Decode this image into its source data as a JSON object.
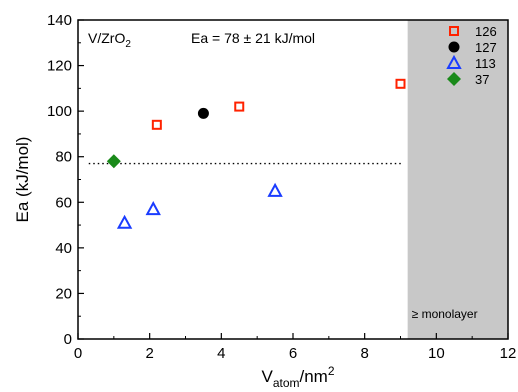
{
  "chart_data": {
    "type": "scatter",
    "xlabel_main": "V",
    "xlabel_sub": "atom",
    "xlabel_unit": "/nm",
    "xlabel_sup": "2",
    "ylabel": "Ea (kJ/mol)",
    "xlim": [
      0,
      12
    ],
    "ylim": [
      0,
      140
    ],
    "x_ticks": [
      0,
      2,
      4,
      6,
      8,
      10,
      12
    ],
    "y_ticks": [
      0,
      20,
      40,
      60,
      80,
      100,
      120,
      140
    ],
    "grid": false,
    "legend_position": "top-right",
    "annotation_system_main": "V/ZrO",
    "annotation_system_sub": "2",
    "annotation_ea": "Ea = 78 ± 21 kJ/mol",
    "reference_line_y": 77,
    "shaded_region_xmin": 9.2,
    "shaded_region_label": "≥ monolayer",
    "series": [
      {
        "name": "126",
        "marker": "square-open",
        "color": "#ff2200",
        "points": [
          [
            2.2,
            94
          ],
          [
            4.5,
            102
          ],
          [
            9.0,
            112
          ]
        ]
      },
      {
        "name": "127",
        "marker": "circle-filled",
        "color": "#000000",
        "points": [
          [
            3.5,
            99
          ]
        ]
      },
      {
        "name": "113",
        "marker": "triangle-open",
        "color": "#1a3cff",
        "points": [
          [
            1.3,
            51
          ],
          [
            2.1,
            57
          ],
          [
            5.5,
            65
          ]
        ]
      },
      {
        "name": "37",
        "marker": "diamond-filled",
        "color": "#1a8a1a",
        "points": [
          [
            1.0,
            78
          ]
        ]
      }
    ],
    "shade_color": "#c8c8c8"
  }
}
